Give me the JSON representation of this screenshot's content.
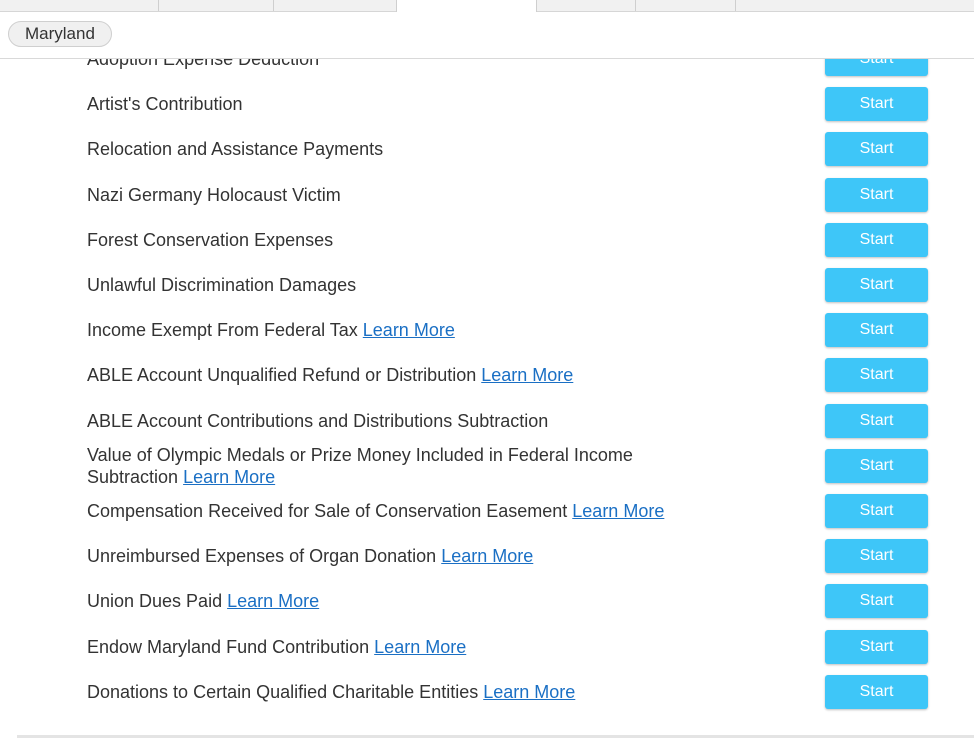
{
  "header": {
    "state": "Maryland"
  },
  "rows": [
    {
      "label": "Adoption Expense Deduction",
      "button": "Start"
    },
    {
      "label": "Artist's Contribution",
      "button": "Start"
    },
    {
      "label": "Relocation and Assistance Payments",
      "button": "Start"
    },
    {
      "label": "Nazi Germany Holocaust Victim",
      "button": "Start"
    },
    {
      "label": "Forest Conservation Expenses",
      "button": "Start"
    },
    {
      "label": "Unlawful Discrimination Damages",
      "button": "Start"
    },
    {
      "label": "Income Exempt From Federal Tax",
      "link": "Learn More",
      "button": "Start"
    },
    {
      "label": "ABLE Account Unqualified Refund or Distribution",
      "link": "Learn More",
      "button": "Start"
    },
    {
      "label": "ABLE Account Contributions and Distributions Subtraction",
      "button": "Start"
    },
    {
      "label": "Value of Olympic Medals or Prize Money Included in Federal Income Subtraction",
      "link": "Learn More",
      "button": "Start"
    },
    {
      "label": "Compensation Received for Sale of Conservation Easement",
      "link": "Learn More",
      "button": "Start"
    },
    {
      "label": "Unreimbursed Expenses of Organ Donation",
      "link": "Learn More",
      "button": "Start"
    },
    {
      "label": "Union Dues Paid",
      "link": "Learn More",
      "button": "Start"
    },
    {
      "label": "Endow Maryland Fund Contribution",
      "link": "Learn More",
      "button": "Start"
    },
    {
      "label": "Donations to Certain Qualified Charitable Entities",
      "link": "Learn More",
      "button": "Start"
    }
  ]
}
